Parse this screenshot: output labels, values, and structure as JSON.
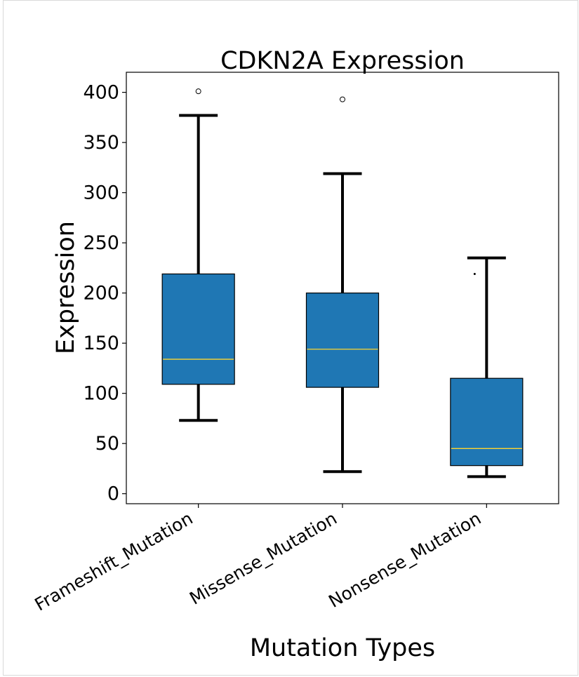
{
  "chart_data": {
    "type": "box",
    "title": "CDKN2A Expression",
    "xlabel": "Mutation Types",
    "ylabel": "Expression",
    "ylim": [
      -10,
      420
    ],
    "yticks": [
      0,
      50,
      100,
      150,
      200,
      250,
      300,
      350,
      400
    ],
    "grid": false,
    "box_color": "#1f77b4",
    "median_color": "#ffd52e",
    "categories": [
      "Frameshift_Mutation",
      "Missense_Mutation",
      "Nonsense_Mutation"
    ],
    "boxes": [
      {
        "category": "Frameshift_Mutation",
        "whisker_low": 73,
        "q1": 109,
        "median": 134,
        "q3": 219,
        "whisker_high": 377,
        "outliers": [
          401
        ]
      },
      {
        "category": "Missense_Mutation",
        "whisker_low": 22,
        "q1": 106,
        "median": 144,
        "q3": 200,
        "whisker_high": 319,
        "outliers": [
          393
        ]
      },
      {
        "category": "Nonsense_Mutation",
        "whisker_low": 17,
        "q1": 28,
        "median": 45,
        "q3": 115,
        "whisker_high": 235,
        "outliers": [
          219
        ]
      }
    ]
  }
}
